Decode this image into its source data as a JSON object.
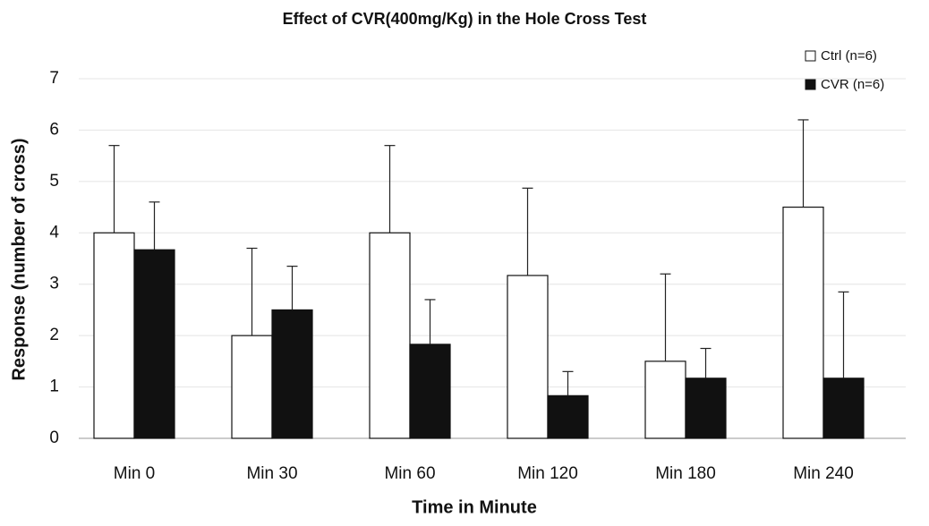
{
  "chart_data": {
    "type": "bar",
    "title": "Effect of CVR(400mg/Kg) in the Hole Cross Test",
    "x_label": "Time in Minute",
    "y_label": "Response (number of cross)",
    "categories": [
      "Min 0",
      "Min 30",
      "Min 60",
      "Min 120",
      "Min 180",
      "Min 240"
    ],
    "series": [
      {
        "name": "Ctrl (n=6)",
        "color": "#ffffff",
        "values": [
          4.0,
          2.0,
          4.0,
          3.17,
          1.5,
          4.5
        ],
        "errors": [
          1.7,
          1.7,
          1.7,
          1.7,
          1.7,
          1.7
        ]
      },
      {
        "name": "CVR (n=6)",
        "color": "#111111",
        "values": [
          3.67,
          2.5,
          1.83,
          0.83,
          1.17,
          1.17
        ],
        "errors": [
          0.93,
          0.85,
          0.87,
          0.47,
          0.58,
          1.68
        ]
      }
    ],
    "ylim": [
      0,
      7
    ],
    "yticks": [
      0,
      1,
      2,
      3,
      4,
      5,
      6,
      7
    ],
    "grid": true,
    "legend": "top-right"
  }
}
